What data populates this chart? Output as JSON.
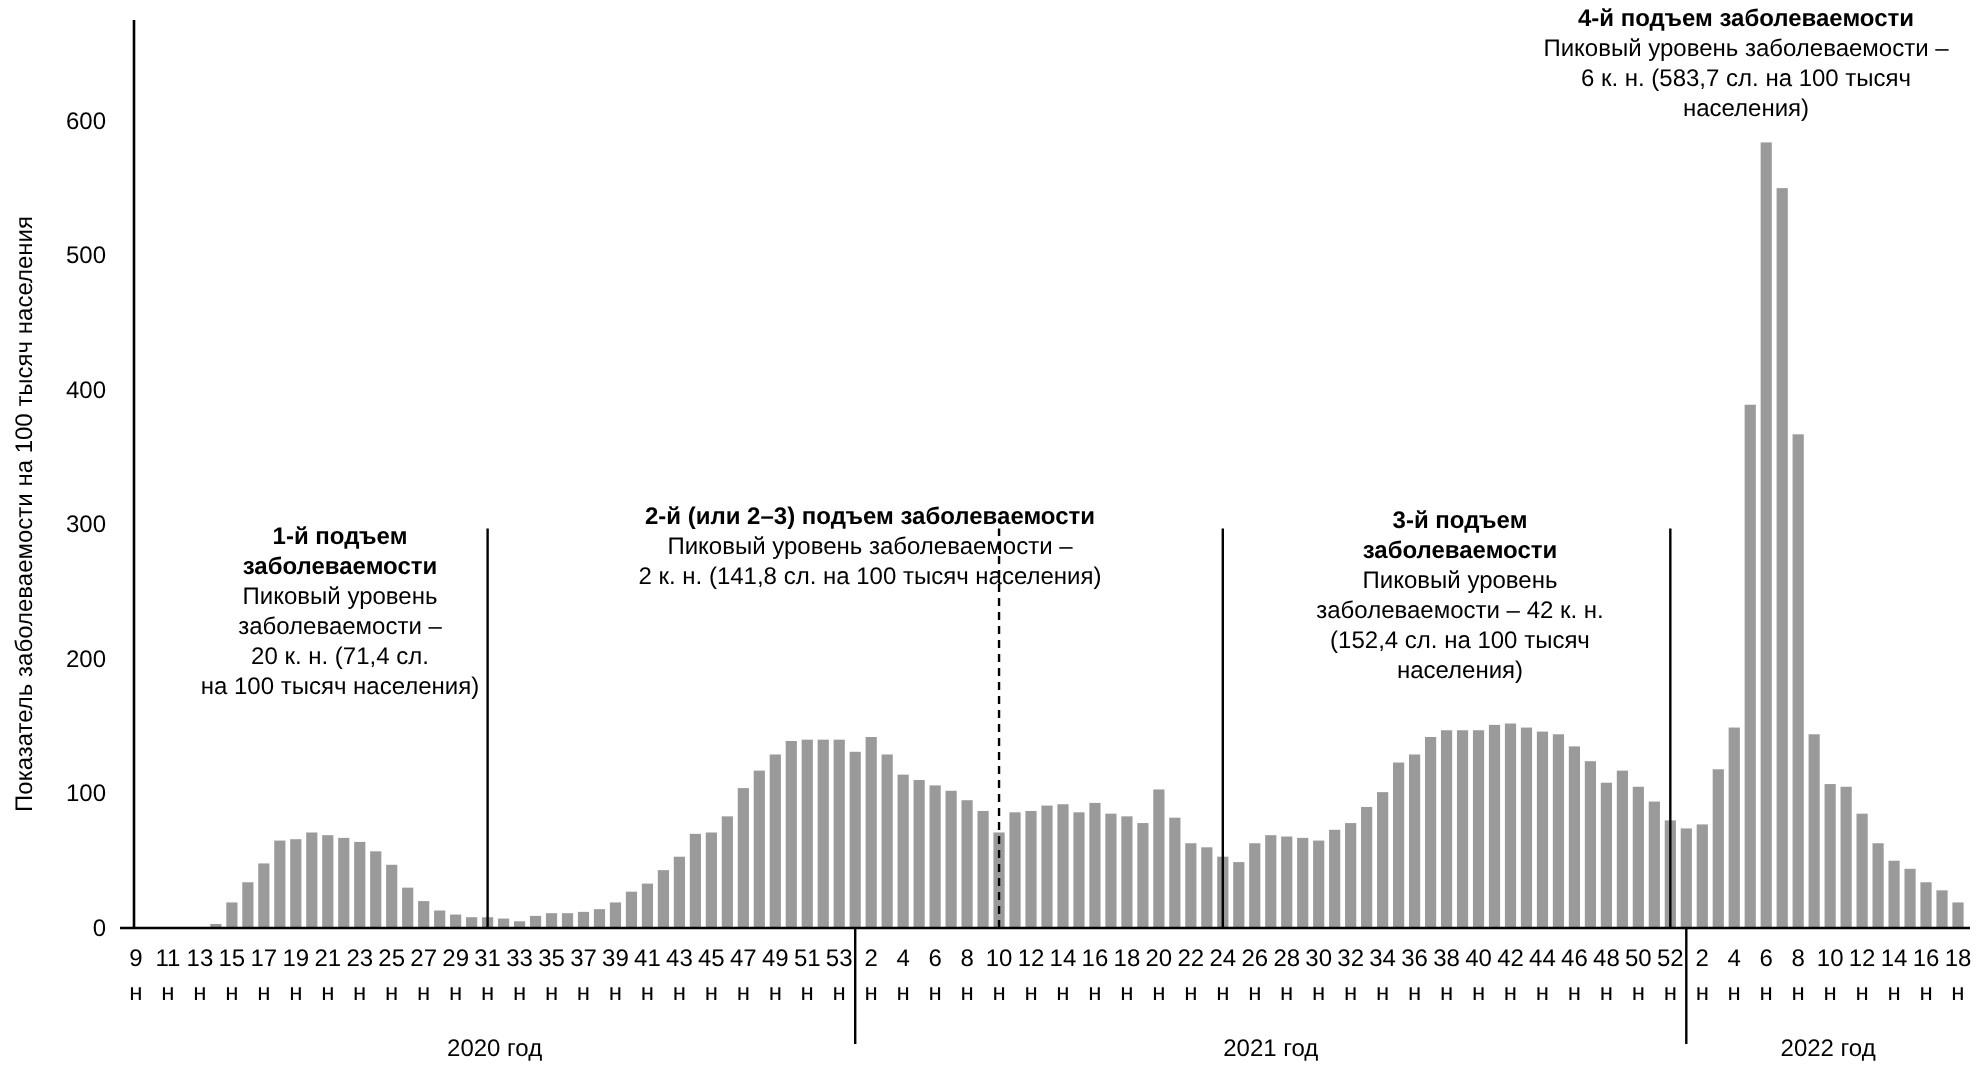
{
  "chart_data": {
    "type": "bar",
    "ylabel": "Показатель заболеваемости на 100 тысяч населения",
    "categories": [
      "9 н",
      null,
      "11 н",
      null,
      "13 н",
      null,
      "15 н",
      null,
      "17 н",
      null,
      "19 н",
      null,
      "21 н",
      null,
      "23 н",
      null,
      "25 н",
      null,
      "27 н",
      null,
      "29 н",
      null,
      "31 н",
      null,
      "33 н",
      null,
      "35 н",
      null,
      "37 н",
      null,
      "39 н",
      null,
      "41 н",
      null,
      "43 н",
      null,
      "45 н",
      null,
      "47 н",
      null,
      "49 н",
      null,
      "51 н",
      null,
      "53 н",
      null,
      "2 н",
      null,
      "4 н",
      null,
      "6 н",
      null,
      "8 н",
      null,
      "10 н",
      null,
      "12 н",
      null,
      "14 н",
      null,
      "16 н",
      null,
      "18 н",
      null,
      "20 н",
      null,
      "22 н",
      null,
      "24 н",
      null,
      "26 н",
      null,
      "28 н",
      null,
      "30 н",
      null,
      "32 н",
      null,
      "34 н",
      null,
      "36 н",
      null,
      "38 н",
      null,
      "40 н",
      null,
      "42 н",
      null,
      "44 н",
      null,
      "46 н",
      null,
      "48 н",
      null,
      "50 н",
      null,
      "52 н",
      null,
      "2 н",
      null,
      "4 н",
      null,
      "6 н",
      null,
      "8 н",
      null,
      "10 н",
      null,
      "12 н",
      null,
      "14 н",
      null,
      "16 н",
      null,
      "18 н"
    ],
    "series": [
      {
        "color": "#9a9a9a",
        "values": [
          0,
          0,
          0,
          0,
          0,
          3,
          19,
          34,
          48,
          65,
          66,
          71,
          69,
          67,
          64,
          57,
          47,
          30,
          20,
          13,
          10,
          8,
          8,
          7,
          5,
          9,
          11,
          11,
          12,
          14,
          19,
          27,
          33,
          43,
          53,
          70,
          71,
          83,
          104,
          117,
          129,
          139,
          140,
          140,
          140,
          131,
          142,
          129,
          114,
          110,
          106,
          102,
          95,
          87,
          71,
          86,
          87,
          91,
          92,
          86,
          93,
          85,
          83,
          78,
          103,
          82,
          63,
          60,
          53,
          49,
          63,
          69,
          68,
          67,
          65,
          73,
          78,
          90,
          101,
          123,
          129,
          142,
          147,
          147,
          147,
          151,
          152,
          149,
          146,
          144,
          135,
          124,
          108,
          117,
          105,
          94,
          80,
          74,
          77,
          118,
          149,
          389,
          584,
          550,
          367,
          144,
          107,
          105,
          85,
          63,
          50,
          44,
          34,
          28,
          19
        ]
      }
    ],
    "ylim": [
      0,
      675
    ],
    "yticks": [
      0,
      100,
      200,
      300,
      400,
      500,
      600
    ],
    "ref_lines": [
      {
        "axis": "x",
        "value": "31 н"
      },
      {
        "axis": "x",
        "value": "10 н",
        "line_style": "dashed"
      },
      {
        "axis": "x",
        "value": "24 н"
      },
      {
        "axis": "x",
        "value": "52 н"
      }
    ],
    "annotations": [
      "1-й подъем\nзаболеваемости",
      "Пиковый уровень\nзаболеваемости –\n20 к. н. (71,4 сл.\nна 100 тысяч населения)",
      "2-й (или 2–3) подъем заболеваемости",
      "Пиковый уровень заболеваемости –\n2 к. н. (141,8 сл. на 100 тысяч населения)",
      "3-й подъем\nзаболеваемости",
      "Пиковый уровень\nзаболеваемости – 42 к. н.\n(152,4 сл. на 100 тысяч\nнаселения)",
      "4-й подъем заболеваемости",
      "Пиковый уровень заболеваемости –\n6 к. н. (583,7 сл. на 100 тысяч\nнаселения)",
      "2020 год",
      "2021 год",
      "2022 год"
    ],
    "grid": false
  }
}
